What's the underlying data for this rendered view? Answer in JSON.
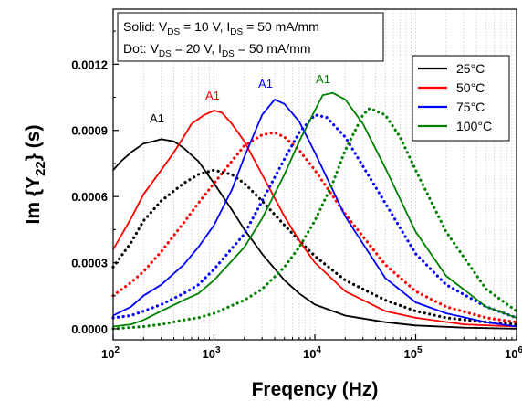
{
  "chart_data": {
    "type": "line",
    "xlabel": "Freqency (Hz)",
    "ylabel_main": "Im {Y",
    "ylabel_sub": "22",
    "ylabel_tail": "} (s)",
    "x_scale": "log",
    "xlim": [
      100,
      1000000
    ],
    "ylim": [
      -5e-05,
      0.00145
    ],
    "grid": "vertical dotted minor lines",
    "y_ticks": [
      "0.0000",
      "0.0003",
      "0.0006",
      "0.0009",
      "0.0012"
    ],
    "y_tick_values": [
      0,
      0.0003,
      0.0006,
      0.0009,
      0.0012
    ],
    "x_ticks": [
      {
        "base": "10",
        "exp": "2",
        "value": 100
      },
      {
        "base": "10",
        "exp": "3",
        "value": 1000
      },
      {
        "base": "10",
        "exp": "4",
        "value": 10000
      },
      {
        "base": "10",
        "exp": "5",
        "value": 100000
      },
      {
        "base": "10",
        "exp": "6",
        "value": 1000000
      }
    ],
    "conditions": {
      "solid": {
        "prefix": "Solid: V",
        "v_sub": "DS",
        "v_val": " = 10 V, I",
        "i_sub": "DS",
        "i_val": " = 50 mA/mm"
      },
      "dot": {
        "prefix": "Dot: V",
        "v_sub": "DS",
        "v_val": " = 20 V, I",
        "i_sub": "DS",
        "i_val": " = 50 mA/mm"
      }
    },
    "legend_position": "top-right",
    "series": [
      {
        "name": "25°C",
        "color": "#000000",
        "peak_label": "A1",
        "solid": [
          [
            100,
            0.00072
          ],
          [
            120,
            0.00076
          ],
          [
            150,
            0.0008
          ],
          [
            200,
            0.00084
          ],
          [
            250,
            0.00085
          ],
          [
            300,
            0.00086
          ],
          [
            400,
            0.00085
          ],
          [
            500,
            0.00082
          ],
          [
            700,
            0.00076
          ],
          [
            1000,
            0.00066
          ],
          [
            1500,
            0.00054
          ],
          [
            2000,
            0.00045
          ],
          [
            3000,
            0.00034
          ],
          [
            5000,
            0.00022
          ],
          [
            7000,
            0.00016
          ],
          [
            10000,
            0.00011
          ],
          [
            20000,
            6e-05
          ],
          [
            50000,
            3e-05
          ],
          [
            100000,
            1.5e-05
          ],
          [
            300000,
            5e-06
          ],
          [
            1000000,
            0.0
          ]
        ],
        "dot": [
          [
            100,
            0.00028
          ],
          [
            150,
            0.00039
          ],
          [
            200,
            0.00049
          ],
          [
            300,
            0.00058
          ],
          [
            500,
            0.00066
          ],
          [
            700,
            0.0007
          ],
          [
            1000,
            0.00072
          ],
          [
            1500,
            0.0007
          ],
          [
            2000,
            0.00066
          ],
          [
            3000,
            0.00058
          ],
          [
            5000,
            0.00047
          ],
          [
            7000,
            0.0004
          ],
          [
            10000,
            0.00033
          ],
          [
            20000,
            0.00022
          ],
          [
            50000,
            0.00013
          ],
          [
            100000,
            8e-05
          ],
          [
            200000,
            5e-05
          ],
          [
            500000,
            3e-05
          ],
          [
            1000000,
            2e-05
          ]
        ]
      },
      {
        "name": "50°C",
        "color": "#ff0000",
        "peak_label": "A1",
        "solid": [
          [
            100,
            0.00036
          ],
          [
            150,
            0.0005
          ],
          [
            200,
            0.00061
          ],
          [
            300,
            0.00072
          ],
          [
            400,
            0.0008
          ],
          [
            500,
            0.00087
          ],
          [
            600,
            0.00093
          ],
          [
            800,
            0.00097
          ],
          [
            1000,
            0.00099
          ],
          [
            1200,
            0.00098
          ],
          [
            1500,
            0.00093
          ],
          [
            2000,
            0.00085
          ],
          [
            3000,
            0.0007
          ],
          [
            5000,
            0.00051
          ],
          [
            7000,
            0.0004
          ],
          [
            10000,
            0.0003
          ],
          [
            20000,
            0.00017
          ],
          [
            50000,
            8e-05
          ],
          [
            100000,
            5e-05
          ],
          [
            300000,
            2e-05
          ],
          [
            1000000,
            1e-05
          ]
        ],
        "dot": [
          [
            100,
            0.00015
          ],
          [
            150,
            0.00021
          ],
          [
            200,
            0.00026
          ],
          [
            300,
            0.00035
          ],
          [
            500,
            0.00048
          ],
          [
            700,
            0.00057
          ],
          [
            1000,
            0.00066
          ],
          [
            1500,
            0.00076
          ],
          [
            2000,
            0.00083
          ],
          [
            3000,
            0.00088
          ],
          [
            4000,
            0.00089
          ],
          [
            5000,
            0.00087
          ],
          [
            7000,
            0.00081
          ],
          [
            10000,
            0.00072
          ],
          [
            20000,
            0.00052
          ],
          [
            50000,
            0.00029
          ],
          [
            100000,
            0.00017
          ],
          [
            200000,
            0.0001
          ],
          [
            500000,
            5e-05
          ],
          [
            1000000,
            3e-05
          ]
        ]
      },
      {
        "name": "75°C",
        "color": "#0000ff",
        "peak_label": "A1",
        "solid": [
          [
            100,
            6e-05
          ],
          [
            150,
            0.0001
          ],
          [
            200,
            0.00015
          ],
          [
            300,
            0.0002
          ],
          [
            500,
            0.00029
          ],
          [
            700,
            0.00037
          ],
          [
            1000,
            0.00047
          ],
          [
            1500,
            0.00063
          ],
          [
            2000,
            0.00078
          ],
          [
            3000,
            0.00097
          ],
          [
            4000,
            0.00104
          ],
          [
            5000,
            0.00102
          ],
          [
            7000,
            0.00094
          ],
          [
            10000,
            0.0008
          ],
          [
            20000,
            0.00051
          ],
          [
            50000,
            0.00023
          ],
          [
            100000,
            0.00012
          ],
          [
            200000,
            7e-05
          ],
          [
            500000,
            3e-05
          ],
          [
            1000000,
            1e-05
          ]
        ],
        "dot": [
          [
            100,
            5e-05
          ],
          [
            150,
            6e-05
          ],
          [
            200,
            8e-05
          ],
          [
            300,
            0.00011
          ],
          [
            500,
            0.00016
          ],
          [
            700,
            0.0002
          ],
          [
            1000,
            0.00027
          ],
          [
            2000,
            0.00043
          ],
          [
            3000,
            0.00058
          ],
          [
            5000,
            0.00077
          ],
          [
            7000,
            0.00089
          ],
          [
            10000,
            0.00097
          ],
          [
            13000,
            0.00096
          ],
          [
            20000,
            0.00087
          ],
          [
            50000,
            0.00057
          ],
          [
            100000,
            0.00034
          ],
          [
            200000,
            0.0002
          ],
          [
            500000,
            0.0001
          ],
          [
            1000000,
            5e-05
          ]
        ]
      },
      {
        "name": "100°C",
        "color": "#008000",
        "peak_label": "A1",
        "solid": [
          [
            100,
            1e-05
          ],
          [
            150,
            2e-05
          ],
          [
            200,
            4e-05
          ],
          [
            300,
            8e-05
          ],
          [
            500,
            0.00013
          ],
          [
            700,
            0.00016
          ],
          [
            1000,
            0.00022
          ],
          [
            2000,
            0.00037
          ],
          [
            3000,
            0.0005
          ],
          [
            5000,
            0.0007
          ],
          [
            7000,
            0.00085
          ],
          [
            10000,
            0.00099
          ],
          [
            12000,
            0.00106
          ],
          [
            15000,
            0.00107
          ],
          [
            20000,
            0.00104
          ],
          [
            30000,
            0.00093
          ],
          [
            50000,
            0.00073
          ],
          [
            100000,
            0.00044
          ],
          [
            200000,
            0.00024
          ],
          [
            500000,
            0.0001
          ],
          [
            1000000,
            5e-05
          ]
        ],
        "dot": [
          [
            100,
            0.0
          ],
          [
            200,
            1e-05
          ],
          [
            300,
            2e-05
          ],
          [
            500,
            4e-05
          ],
          [
            700,
            5e-05
          ],
          [
            1000,
            7e-05
          ],
          [
            2000,
            0.00013
          ],
          [
            3000,
            0.00018
          ],
          [
            5000,
            0.00028
          ],
          [
            7000,
            0.00037
          ],
          [
            10000,
            0.00049
          ],
          [
            15000,
            0.00066
          ],
          [
            20000,
            0.00081
          ],
          [
            30000,
            0.00097
          ],
          [
            35000,
            0.001
          ],
          [
            50000,
            0.00097
          ],
          [
            70000,
            0.00087
          ],
          [
            100000,
            0.00072
          ],
          [
            200000,
            0.00044
          ],
          [
            500000,
            0.00018
          ],
          [
            1000000,
            8e-05
          ]
        ]
      }
    ]
  }
}
